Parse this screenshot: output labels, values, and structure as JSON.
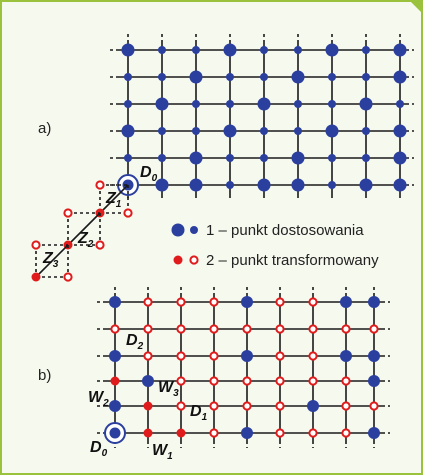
{
  "panels": {
    "a": "a)",
    "b": "b)"
  },
  "labels_a": {
    "d0": {
      "main": "D",
      "sub": "0"
    },
    "z1": {
      "main": "Z",
      "sub": "1"
    },
    "z2": {
      "main": "Z",
      "sub": "2"
    },
    "z3": {
      "main": "Z",
      "sub": "3"
    }
  },
  "labels_b": {
    "d2": {
      "main": "D",
      "sub": "2"
    },
    "w2": {
      "main": "W",
      "sub": "2"
    },
    "w3": {
      "main": "W",
      "sub": "3"
    },
    "d1": {
      "main": "D",
      "sub": "1"
    },
    "d0": {
      "main": "D",
      "sub": "0"
    },
    "w1": {
      "main": "W",
      "sub": "1"
    }
  },
  "legend": {
    "item1": "1 – punkt dostosowania",
    "item2": "2 – punkt transformowany"
  },
  "colors": {
    "frame_border": "#9bc23c",
    "frame_fill": "#f6f9ee",
    "adjustment_point": "#2b3f9e",
    "transformed_point": "#e01b1b",
    "grid_line": "#1a1a1a"
  }
}
